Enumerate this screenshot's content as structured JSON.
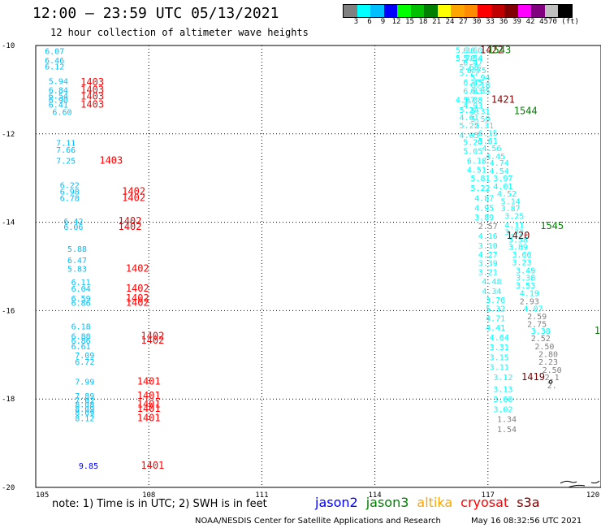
{
  "header": {
    "title": "12:00 – 23:59 UTC 05/13/2021",
    "subtitle": "12 hour collection of altimeter wave heights"
  },
  "colorbar": {
    "colors": [
      "#808080",
      "#00ffff",
      "#00bfff",
      "#0000ff",
      "#00ff00",
      "#00c000",
      "#008000",
      "#ffff00",
      "#ffa500",
      "#ff8c00",
      "#ff0000",
      "#c00000",
      "#800000",
      "#ff00ff",
      "#800080",
      "#c0c0c0",
      "#000000"
    ],
    "labels": [
      "3",
      "6",
      "9",
      "12",
      "15",
      "18",
      "21",
      "24",
      "27",
      "30",
      "33",
      "36",
      "39",
      "42",
      "45",
      "70 (ft)"
    ]
  },
  "footer": {
    "note": "note: 1) Time is in UTC; 2) SWH is in feet",
    "legend": [
      {
        "name": "jason2",
        "color": "#0000ff"
      },
      {
        "name": "jason3",
        "color": "#008000"
      },
      {
        "name": "altika",
        "color": "#ffa500"
      },
      {
        "name": "cryosat",
        "color": "#ff0000"
      },
      {
        "name": "s3a",
        "color": "#800000"
      }
    ],
    "credit": "NOAA/NESDIS Center for Satellite Applications and Research",
    "timestamp": "May 16 08:32:56 UTC 2021"
  },
  "chart_data": {
    "type": "scatter",
    "xlim": [
      105,
      120
    ],
    "ylim": [
      -20,
      -10
    ],
    "x_ticks": [
      105,
      108,
      111,
      114,
      117,
      120
    ],
    "x_tick_labels": [
      "105",
      "108",
      "111",
      "114",
      "117",
      "120"
    ],
    "y_ticks": [
      -10,
      -12,
      -14,
      -16,
      -18,
      -20
    ],
    "y_tick_labels": [
      "-10",
      "-12",
      "-14",
      "-16",
      "-18",
      "-20"
    ],
    "grid": true,
    "wave_heights": [
      {
        "x": 105.5,
        "y": -10.12,
        "label": "6.07",
        "color": "#00bfff"
      },
      {
        "x": 105.5,
        "y": -10.33,
        "label": "6.46",
        "color": "#00bfff"
      },
      {
        "x": 105.5,
        "y": -10.47,
        "label": "6.12",
        "color": "#00bfff"
      },
      {
        "x": 105.6,
        "y": -10.8,
        "label": "5.94",
        "color": "#00bfff"
      },
      {
        "x": 105.6,
        "y": -11.0,
        "label": "6.84",
        "color": "#00bfff"
      },
      {
        "x": 105.6,
        "y": -11.13,
        "label": "6.54",
        "color": "#00bfff"
      },
      {
        "x": 105.6,
        "y": -11.22,
        "label": "6.90",
        "color": "#00bfff"
      },
      {
        "x": 105.6,
        "y": -11.33,
        "label": "6.41",
        "color": "#00bfff"
      },
      {
        "x": 105.7,
        "y": -11.5,
        "label": "6.60",
        "color": "#00bfff"
      },
      {
        "x": 105.8,
        "y": -12.2,
        "label": "7.11",
        "color": "#00bfff"
      },
      {
        "x": 105.8,
        "y": -12.35,
        "label": "7.66",
        "color": "#00bfff"
      },
      {
        "x": 105.8,
        "y": -12.6,
        "label": "7.25",
        "color": "#00bfff"
      },
      {
        "x": 105.9,
        "y": -13.15,
        "label": "6.22",
        "color": "#00bfff"
      },
      {
        "x": 105.9,
        "y": -13.3,
        "label": "6.98",
        "color": "#00bfff"
      },
      {
        "x": 105.9,
        "y": -13.45,
        "label": "6.78",
        "color": "#00bfff"
      },
      {
        "x": 106.0,
        "y": -13.97,
        "label": "6.42",
        "color": "#00bfff"
      },
      {
        "x": 106.0,
        "y": -14.1,
        "label": "6.06",
        "color": "#00bfff"
      },
      {
        "x": 106.1,
        "y": -14.6,
        "label": "5.88",
        "color": "#00bfff"
      },
      {
        "x": 106.1,
        "y": -14.85,
        "label": "6.47",
        "color": "#00bfff"
      },
      {
        "x": 106.1,
        "y": -15.05,
        "label": "5.83",
        "color": "#00bfff"
      },
      {
        "x": 106.2,
        "y": -15.35,
        "label": "6.11",
        "color": "#00bfff"
      },
      {
        "x": 106.2,
        "y": -15.5,
        "label": "6.04",
        "color": "#00bfff"
      },
      {
        "x": 106.2,
        "y": -15.72,
        "label": "6.59",
        "color": "#00bfff"
      },
      {
        "x": 106.2,
        "y": -15.82,
        "label": "6.86",
        "color": "#00bfff"
      },
      {
        "x": 106.2,
        "y": -16.35,
        "label": "6.18",
        "color": "#00bfff"
      },
      {
        "x": 106.2,
        "y": -16.57,
        "label": "6.88",
        "color": "#00bfff"
      },
      {
        "x": 106.2,
        "y": -16.67,
        "label": "6.86",
        "color": "#00bfff"
      },
      {
        "x": 106.2,
        "y": -16.8,
        "label": "6.61",
        "color": "#00bfff"
      },
      {
        "x": 106.3,
        "y": -17.0,
        "label": "7.09",
        "color": "#00bfff"
      },
      {
        "x": 106.3,
        "y": -17.15,
        "label": "6.72",
        "color": "#00bfff"
      },
      {
        "x": 106.3,
        "y": -17.6,
        "label": "7.99",
        "color": "#00bfff"
      },
      {
        "x": 106.3,
        "y": -17.92,
        "label": "7.89",
        "color": "#00bfff"
      },
      {
        "x": 106.3,
        "y": -18.02,
        "label": "7.62",
        "color": "#00bfff"
      },
      {
        "x": 106.3,
        "y": -18.12,
        "label": "8.08",
        "color": "#00bfff"
      },
      {
        "x": 106.3,
        "y": -18.22,
        "label": "8.09",
        "color": "#00bfff"
      },
      {
        "x": 106.3,
        "y": -18.3,
        "label": "8.09",
        "color": "#00bfff"
      },
      {
        "x": 106.3,
        "y": -18.43,
        "label": "8.12",
        "color": "#00bfff"
      },
      {
        "x": 106.4,
        "y": -19.5,
        "label": "9.85",
        "color": "#0000ff"
      },
      {
        "x": 116.4,
        "y": -10.1,
        "label": "5.36",
        "color": "#00ffff"
      },
      {
        "x": 116.6,
        "y": -10.1,
        "label": "6.60",
        "color": "#00ffff"
      },
      {
        "x": 116.4,
        "y": -10.28,
        "label": "5.70",
        "color": "#00ffff"
      },
      {
        "x": 116.6,
        "y": -10.28,
        "label": "5.54",
        "color": "#00ffff"
      },
      {
        "x": 116.6,
        "y": -10.38,
        "label": "6.47",
        "color": "#00ffff"
      },
      {
        "x": 116.5,
        "y": -10.48,
        "label": "5.68",
        "color": "#00ffff"
      },
      {
        "x": 116.7,
        "y": -10.55,
        "label": "6.75",
        "color": "#00ffff"
      },
      {
        "x": 116.5,
        "y": -10.62,
        "label": "5.77",
        "color": "#00ffff"
      },
      {
        "x": 116.8,
        "y": -10.72,
        "label": "5.94",
        "color": "#00ffff"
      },
      {
        "x": 116.6,
        "y": -10.83,
        "label": "6.45",
        "color": "#00ffff"
      },
      {
        "x": 116.8,
        "y": -10.88,
        "label": "6.18",
        "color": "#00ffff"
      },
      {
        "x": 116.6,
        "y": -11.02,
        "label": "6.83",
        "color": "#00ffff"
      },
      {
        "x": 116.8,
        "y": -11.02,
        "label": "6.35",
        "color": "#00ffff"
      },
      {
        "x": 116.4,
        "y": -11.22,
        "label": "4.87",
        "color": "#00ffff"
      },
      {
        "x": 116.6,
        "y": -11.22,
        "label": "5.08",
        "color": "#00ffff"
      },
      {
        "x": 116.6,
        "y": -11.35,
        "label": "4.93",
        "color": "#00ffff"
      },
      {
        "x": 116.5,
        "y": -11.45,
        "label": "5.24",
        "color": "#00ffff"
      },
      {
        "x": 116.8,
        "y": -11.48,
        "label": "5.31",
        "color": "#00ffff"
      },
      {
        "x": 116.5,
        "y": -11.62,
        "label": "4.61",
        "color": "#00ffff"
      },
      {
        "x": 116.8,
        "y": -11.65,
        "label": "5.59",
        "color": "#00ffff"
      },
      {
        "x": 116.5,
        "y": -11.8,
        "label": "5.22",
        "color": "#00ffff"
      },
      {
        "x": 116.9,
        "y": -11.8,
        "label": "5.31",
        "color": "#00ffff"
      },
      {
        "x": 116.5,
        "y": -12.02,
        "label": "4.05",
        "color": "#00ffff"
      },
      {
        "x": 117.0,
        "y": -11.98,
        "label": "6.15",
        "color": "#00ffff"
      },
      {
        "x": 116.6,
        "y": -12.18,
        "label": "5.20",
        "color": "#00ffff"
      },
      {
        "x": 117.0,
        "y": -12.15,
        "label": "5.61",
        "color": "#00ffff"
      },
      {
        "x": 117.1,
        "y": -12.32,
        "label": "4.56",
        "color": "#00ffff"
      },
      {
        "x": 116.6,
        "y": -12.38,
        "label": "5.05",
        "color": "#00ffff"
      },
      {
        "x": 117.2,
        "y": -12.5,
        "label": "4.45",
        "color": "#00ffff"
      },
      {
        "x": 116.7,
        "y": -12.6,
        "label": "6.18",
        "color": "#00ffff"
      },
      {
        "x": 117.3,
        "y": -12.65,
        "label": "4.74",
        "color": "#00ffff"
      },
      {
        "x": 116.7,
        "y": -12.8,
        "label": "4.51",
        "color": "#00ffff"
      },
      {
        "x": 117.3,
        "y": -12.83,
        "label": "4.54",
        "color": "#00ffff"
      },
      {
        "x": 116.8,
        "y": -13.0,
        "label": "5.81",
        "color": "#00ffff"
      },
      {
        "x": 117.4,
        "y": -13.0,
        "label": "3.97",
        "color": "#00ffff"
      },
      {
        "x": 116.8,
        "y": -13.22,
        "label": "5.22",
        "color": "#00ffff"
      },
      {
        "x": 117.4,
        "y": -13.18,
        "label": "4.01",
        "color": "#00ffff"
      },
      {
        "x": 117.5,
        "y": -13.35,
        "label": "4.52",
        "color": "#00ffff"
      },
      {
        "x": 116.9,
        "y": -13.45,
        "label": "4.87",
        "color": "#00ffff"
      },
      {
        "x": 117.6,
        "y": -13.52,
        "label": "5.14",
        "color": "#00ffff"
      },
      {
        "x": 116.9,
        "y": -13.67,
        "label": "4.95",
        "color": "#00ffff"
      },
      {
        "x": 117.6,
        "y": -13.68,
        "label": "3.87",
        "color": "#00ffff"
      },
      {
        "x": 116.9,
        "y": -13.88,
        "label": "3.89",
        "color": "#00ffff"
      },
      {
        "x": 117.7,
        "y": -13.85,
        "label": "3.25",
        "color": "#00ffff"
      },
      {
        "x": 117.0,
        "y": -14.08,
        "label": "2.57",
        "color": "#808080"
      },
      {
        "x": 117.7,
        "y": -14.05,
        "label": "4.11",
        "color": "#00ffff"
      },
      {
        "x": 117.0,
        "y": -14.3,
        "label": "4.16",
        "color": "#00ffff"
      },
      {
        "x": 117.7,
        "y": -14.22,
        "label": "3.72",
        "color": "#00ffff"
      },
      {
        "x": 117.8,
        "y": -14.38,
        "label": "3.58",
        "color": "#00ffff"
      },
      {
        "x": 117.0,
        "y": -14.52,
        "label": "3.10",
        "color": "#00ffff"
      },
      {
        "x": 117.8,
        "y": -14.55,
        "label": "3.89",
        "color": "#00ffff"
      },
      {
        "x": 117.0,
        "y": -14.72,
        "label": "4.27",
        "color": "#00ffff"
      },
      {
        "x": 117.9,
        "y": -14.72,
        "label": "3.66",
        "color": "#00ffff"
      },
      {
        "x": 117.0,
        "y": -14.92,
        "label": "3.39",
        "color": "#00ffff"
      },
      {
        "x": 117.9,
        "y": -14.9,
        "label": "3.23",
        "color": "#00ffff"
      },
      {
        "x": 117.0,
        "y": -15.12,
        "label": "3.21",
        "color": "#00ffff"
      },
      {
        "x": 118.0,
        "y": -15.08,
        "label": "3.49",
        "color": "#00ffff"
      },
      {
        "x": 117.1,
        "y": -15.33,
        "label": "4.48",
        "color": "#00ffff"
      },
      {
        "x": 118.0,
        "y": -15.25,
        "label": "3.38",
        "color": "#00ffff"
      },
      {
        "x": 118.0,
        "y": -15.42,
        "label": "3.53",
        "color": "#00ffff"
      },
      {
        "x": 117.1,
        "y": -15.55,
        "label": "4.34",
        "color": "#00ffff"
      },
      {
        "x": 118.1,
        "y": -15.6,
        "label": "4.19",
        "color": "#00ffff"
      },
      {
        "x": 117.2,
        "y": -15.75,
        "label": "3.76",
        "color": "#00ffff"
      },
      {
        "x": 118.1,
        "y": -15.78,
        "label": "2.93",
        "color": "#808080"
      },
      {
        "x": 117.2,
        "y": -15.95,
        "label": "5.32",
        "color": "#00ffff"
      },
      {
        "x": 118.2,
        "y": -15.95,
        "label": "4.07",
        "color": "#00ffff"
      },
      {
        "x": 117.2,
        "y": -16.17,
        "label": "4.71",
        "color": "#00ffff"
      },
      {
        "x": 118.3,
        "y": -16.12,
        "label": "2.59",
        "color": "#808080"
      },
      {
        "x": 118.3,
        "y": -16.3,
        "label": "2.75",
        "color": "#808080"
      },
      {
        "x": 117.2,
        "y": -16.38,
        "label": "4.41",
        "color": "#00ffff"
      },
      {
        "x": 118.4,
        "y": -16.45,
        "label": "3.38",
        "color": "#00ffff"
      },
      {
        "x": 117.3,
        "y": -16.6,
        "label": "4.64",
        "color": "#00ffff"
      },
      {
        "x": 118.4,
        "y": -16.62,
        "label": "2.52",
        "color": "#808080"
      },
      {
        "x": 117.3,
        "y": -16.82,
        "label": "3.31",
        "color": "#00ffff"
      },
      {
        "x": 118.5,
        "y": -16.8,
        "label": "2.50",
        "color": "#808080"
      },
      {
        "x": 118.6,
        "y": -16.98,
        "label": "2.80",
        "color": "#808080"
      },
      {
        "x": 117.3,
        "y": -17.05,
        "label": "3.15",
        "color": "#00ffff"
      },
      {
        "x": 118.6,
        "y": -17.15,
        "label": "2.23",
        "color": "#808080"
      },
      {
        "x": 117.3,
        "y": -17.27,
        "label": "3.11",
        "color": "#00ffff"
      },
      {
        "x": 118.7,
        "y": -17.33,
        "label": "2.50",
        "color": "#808080"
      },
      {
        "x": 117.4,
        "y": -17.5,
        "label": "3.12",
        "color": "#00ffff"
      },
      {
        "x": 118.7,
        "y": -17.5,
        "label": "2.1",
        "color": "#808080"
      },
      {
        "x": 117.4,
        "y": -17.77,
        "label": "3.13",
        "color": "#00ffff"
      },
      {
        "x": 118.7,
        "y": -17.68,
        "label": "2.",
        "color": "#808080"
      },
      {
        "x": 117.4,
        "y": -18.0,
        "label": "3.60",
        "color": "#00ffff"
      },
      {
        "x": 117.4,
        "y": -18.23,
        "label": "3.02",
        "color": "#00ffff"
      },
      {
        "x": 117.5,
        "y": -18.45,
        "label": "1.34",
        "color": "#808080"
      },
      {
        "x": 117.5,
        "y": -18.68,
        "label": "1.54",
        "color": "#808080"
      }
    ],
    "pass_times": [
      {
        "x": 106.5,
        "y": -10.83,
        "label": "1403",
        "color": "#ff0000"
      },
      {
        "x": 106.5,
        "y": -11.0,
        "label": "1403",
        "color": "#ff0000"
      },
      {
        "x": 106.5,
        "y": -11.15,
        "label": "1403",
        "color": "#ff0000"
      },
      {
        "x": 106.5,
        "y": -11.33,
        "label": "1403",
        "color": "#ff0000"
      },
      {
        "x": 107.0,
        "y": -12.6,
        "label": "1403",
        "color": "#ff0000"
      },
      {
        "x": 107.6,
        "y": -13.3,
        "label": "1402",
        "color": "#ff0000"
      },
      {
        "x": 107.6,
        "y": -13.45,
        "label": "1402",
        "color": "#ff0000"
      },
      {
        "x": 107.5,
        "y": -13.97,
        "label": "1402",
        "color": "#ff0000"
      },
      {
        "x": 107.5,
        "y": -14.1,
        "label": "1402",
        "color": "#ff0000"
      },
      {
        "x": 107.7,
        "y": -15.05,
        "label": "1402",
        "color": "#ff0000"
      },
      {
        "x": 107.7,
        "y": -15.5,
        "label": "1402",
        "color": "#ff0000"
      },
      {
        "x": 107.7,
        "y": -15.72,
        "label": "1402",
        "color": "#ff0000"
      },
      {
        "x": 107.7,
        "y": -15.82,
        "label": "1402",
        "color": "#ff0000"
      },
      {
        "x": 108.1,
        "y": -16.57,
        "label": "1402",
        "color": "#ff0000"
      },
      {
        "x": 108.1,
        "y": -16.67,
        "label": "1402",
        "color": "#ff0000"
      },
      {
        "x": 108.0,
        "y": -17.6,
        "label": "1401",
        "color": "#ff0000"
      },
      {
        "x": 108.0,
        "y": -17.92,
        "label": "1401",
        "color": "#ff0000"
      },
      {
        "x": 108.0,
        "y": -18.12,
        "label": "1401",
        "color": "#ff0000"
      },
      {
        "x": 108.0,
        "y": -18.22,
        "label": "1401",
        "color": "#ff0000"
      },
      {
        "x": 108.0,
        "y": -18.43,
        "label": "1401",
        "color": "#ff0000"
      },
      {
        "x": 108.1,
        "y": -19.5,
        "label": "1401",
        "color": "#ff0000"
      },
      {
        "x": 117.1,
        "y": -10.1,
        "label": "1422",
        "color": "#800000"
      },
      {
        "x": 117.3,
        "y": -10.1,
        "label": "1543",
        "color": "#008000"
      },
      {
        "x": 117.4,
        "y": -11.22,
        "label": "1421",
        "color": "#800000"
      },
      {
        "x": 118.0,
        "y": -11.48,
        "label": "1544",
        "color": "#008000"
      },
      {
        "x": 117.8,
        "y": -14.3,
        "label": "1420",
        "color": "#800000"
      },
      {
        "x": 118.7,
        "y": -14.08,
        "label": "1545",
        "color": "#008000"
      },
      {
        "x": 118.2,
        "y": -17.5,
        "label": "1419",
        "color": "#800000"
      },
      {
        "x": 119.9,
        "y": -16.45,
        "label": "1",
        "color": "#008000"
      }
    ]
  }
}
